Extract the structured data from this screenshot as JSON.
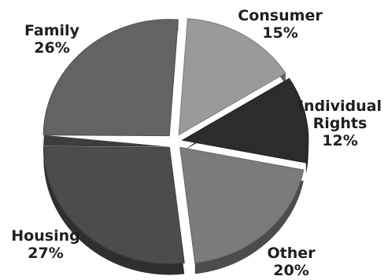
{
  "chart_data": {
    "type": "pie",
    "exploded": true,
    "title": "",
    "slices": [
      {
        "label": [
          "Consumer"
        ],
        "value": 15,
        "value_label": "15%",
        "color": "#9a9a9a"
      },
      {
        "label": [
          "Individual",
          "Rights"
        ],
        "value": 12,
        "value_label": "12%",
        "color": "#2c2c2c"
      },
      {
        "label": [
          "Other"
        ],
        "value": 20,
        "value_label": "20%",
        "color": "#7b7b7b"
      },
      {
        "label": [
          "Housing"
        ],
        "value": 27,
        "value_label": "27%",
        "color": "#4c4c4c"
      },
      {
        "label": [
          "Family"
        ],
        "value": 26,
        "value_label": "26%",
        "color": "#636363"
      }
    ]
  }
}
